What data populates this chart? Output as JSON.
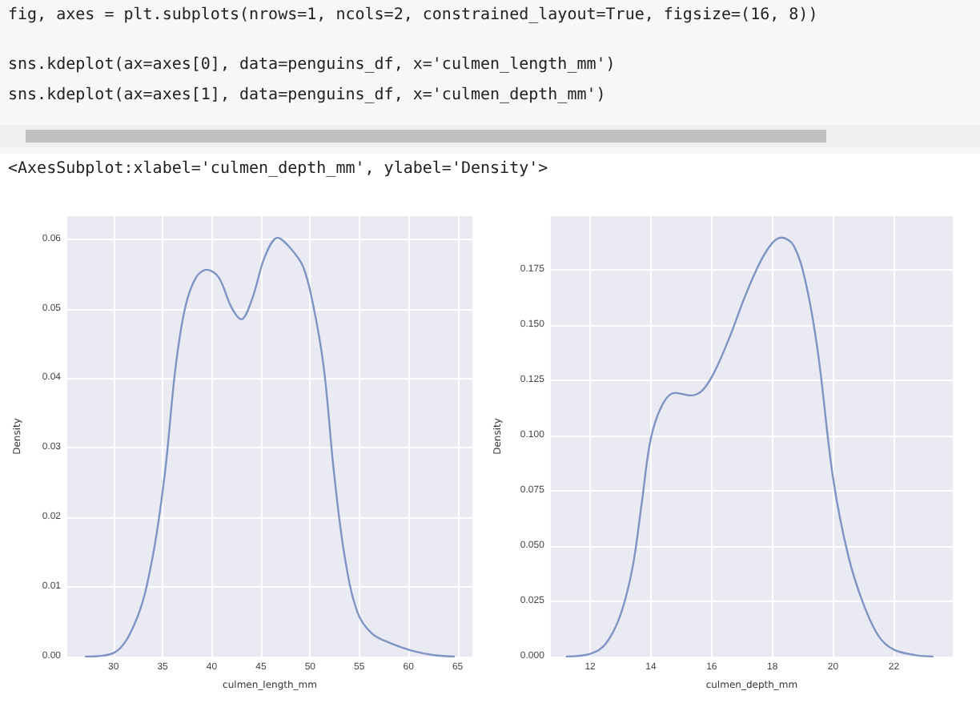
{
  "chart_data": [
    {
      "type": "line",
      "xlabel": "culmen_length_mm",
      "ylabel": "Density",
      "annotations": [
        "fig, axes = plt.subplots(nrows=1, ncols=2, constrained_layout=True, figsize=(16, 8))",
        "sns.kdeplot(ax=axes[0], data=penguins_df, x='culmen_length_mm')",
        "sns.kdeplot(ax=axes[1], data=penguins_df, x='culmen_depth_mm')",
        "<AxesSubplot:xlabel='culmen_depth_mm', ylabel='Density'>"
      ],
      "x": [
        27.1,
        30,
        32.3,
        33.9,
        35.2,
        36.3,
        37.3,
        38.4,
        39.5,
        40.7,
        42,
        43,
        44.1,
        45.4,
        46.7,
        48,
        49.3,
        50.3,
        51.4,
        52.4,
        53.5,
        54.8,
        56.3,
        58.4,
        60.5,
        62.6,
        64.7
      ],
      "series": [
        {
          "color": "#7f93c4",
          "values": [
            0,
            0.0005,
            0.0052,
            0.0137,
            0.026,
            0.0414,
            0.0502,
            0.0545,
            0.0556,
            0.0545,
            0.0502,
            0.0485,
            0.0514,
            0.0575,
            0.0602,
            0.0587,
            0.056,
            0.0506,
            0.0414,
            0.0268,
            0.0145,
            0.0064,
            0.0033,
            0.0018,
            0.0008,
            0.0002,
            0
          ]
        }
      ],
      "xlim": [
        25.3,
        66.5
      ],
      "xticks": [
        30,
        35,
        40,
        45,
        50,
        55,
        60,
        65
      ],
      "ylim": [
        0,
        0.0633
      ],
      "yticks": [
        {
          "value": 0,
          "label": "0.00"
        },
        0.01,
        0.02,
        0.03,
        0.04,
        0.05,
        0.06
      ],
      "grid": true,
      "marker": "none",
      "line_style": "solid"
    },
    {
      "type": "line",
      "xlabel": "culmen_depth_mm",
      "ylabel": "Density",
      "x": [
        11.2,
        12,
        12.5,
        13,
        13.4,
        13.7,
        14,
        14.4,
        14.8,
        15.3,
        15.7,
        16.1,
        16.6,
        17.1,
        17.6,
        18,
        18.3,
        18.7,
        19.1,
        19.5,
        20,
        20.5,
        21,
        21.5,
        22,
        22.7,
        23.3
      ],
      "series": [
        {
          "color": "#7f93c4",
          "values": [
            0,
            0.0012,
            0.0056,
            0.019,
            0.0407,
            0.0697,
            0.0988,
            0.1145,
            0.1193,
            0.1181,
            0.1205,
            0.129,
            0.1448,
            0.163,
            0.1785,
            0.1871,
            0.1895,
            0.1859,
            0.169,
            0.1375,
            0.0806,
            0.0455,
            0.0237,
            0.0092,
            0.0031,
            0.0007,
            0
          ]
        }
      ],
      "xlim": [
        10.7,
        23.94
      ],
      "xticks": [
        12,
        14,
        16,
        18,
        20,
        22
      ],
      "ylim": [
        0,
        0.1992
      ],
      "yticks": [
        {
          "value": 0,
          "label": "0.000"
        },
        {
          "value": 0.025,
          "label": "0.025"
        },
        {
          "value": 0.05,
          "label": "0.050"
        },
        {
          "value": 0.075,
          "label": "0.075"
        },
        {
          "value": 0.1,
          "label": "0.100"
        },
        {
          "value": 0.125,
          "label": "0.125"
        },
        {
          "value": 0.15,
          "label": "0.150"
        },
        {
          "value": 0.175,
          "label": "0.175"
        }
      ],
      "grid": true,
      "marker": "none",
      "line_style": "solid"
    }
  ]
}
